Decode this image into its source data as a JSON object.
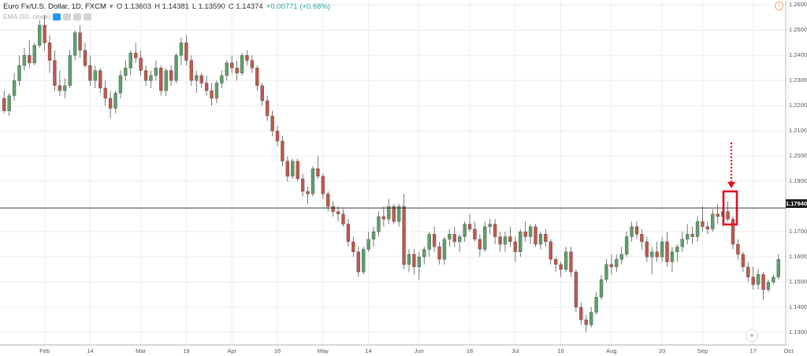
{
  "header": {
    "symbol": "Euro Fx/U.S. Dollar, 1D, FXCM",
    "open": "O 1.13603",
    "high": "H 1.14381",
    "low": "L 1.13590",
    "close": "C 1.14374",
    "change": "+0.00771 (+0.68%)",
    "dropdown_icon": "chevron-down-icon"
  },
  "indicator": {
    "label": "EMA (50, close)"
  },
  "price_axis": {
    "labels": [
      "1.26000",
      "1.25000",
      "1.24000",
      "1.23000",
      "1.22000",
      "1.21000",
      "1.20000",
      "1.19000",
      "1.17000",
      "1.16000",
      "1.15000",
      "1.14000",
      "1.13000"
    ],
    "current_price": "1.17940"
  },
  "time_axis": {
    "labels": [
      "Feb",
      "14",
      "Mar",
      "19",
      "Apr",
      "16",
      "May",
      "14",
      "Jun",
      "18",
      "Jul",
      "16",
      "Aug",
      "20",
      "Sep",
      "17",
      "Oct"
    ]
  },
  "colors": {
    "up": "#5b9f6a",
    "down": "#c0564a",
    "annotation": "#e0141e",
    "grid": "#ececec"
  },
  "icons": {
    "clock": "clock-icon",
    "scroll": "double-chevron-right-icon",
    "arrow": "dotted-arrow-down-icon"
  },
  "chart_data": {
    "type": "candlestick",
    "ylim": [
      1.125,
      1.262
    ],
    "horizontal_line": 1.1794,
    "candles": [
      [
        1.223,
        1.226,
        1.217,
        1.218
      ],
      [
        1.218,
        1.225,
        1.216,
        1.224
      ],
      [
        1.224,
        1.233,
        1.222,
        1.23
      ],
      [
        1.23,
        1.24,
        1.228,
        1.236
      ],
      [
        1.236,
        1.243,
        1.234,
        1.24
      ],
      [
        1.24,
        1.246,
        1.235,
        1.237
      ],
      [
        1.237,
        1.245,
        1.236,
        1.244
      ],
      [
        1.244,
        1.254,
        1.243,
        1.252
      ],
      [
        1.252,
        1.256,
        1.242,
        1.245
      ],
      [
        1.245,
        1.248,
        1.233,
        1.238
      ],
      [
        1.238,
        1.242,
        1.226,
        1.228
      ],
      [
        1.228,
        1.234,
        1.224,
        1.226
      ],
      [
        1.226,
        1.231,
        1.223,
        1.228
      ],
      [
        1.228,
        1.242,
        1.227,
        1.24
      ],
      [
        1.24,
        1.25,
        1.238,
        1.249
      ],
      [
        1.249,
        1.252,
        1.239,
        1.242
      ],
      [
        1.242,
        1.245,
        1.235,
        1.236
      ],
      [
        1.236,
        1.24,
        1.228,
        1.23
      ],
      [
        1.23,
        1.236,
        1.227,
        1.234
      ],
      [
        1.234,
        1.235,
        1.225,
        1.227
      ],
      [
        1.227,
        1.23,
        1.22,
        1.223
      ],
      [
        1.223,
        1.226,
        1.215,
        1.219
      ],
      [
        1.219,
        1.226,
        1.217,
        1.225
      ],
      [
        1.225,
        1.234,
        1.223,
        1.232
      ],
      [
        1.232,
        1.238,
        1.23,
        1.235
      ],
      [
        1.235,
        1.242,
        1.232,
        1.241
      ],
      [
        1.241,
        1.245,
        1.237,
        1.239
      ],
      [
        1.239,
        1.242,
        1.232,
        1.234
      ],
      [
        1.234,
        1.236,
        1.228,
        1.23
      ],
      [
        1.23,
        1.234,
        1.227,
        1.232
      ],
      [
        1.232,
        1.238,
        1.23,
        1.235
      ],
      [
        1.235,
        1.236,
        1.224,
        1.226
      ],
      [
        1.226,
        1.235,
        1.224,
        1.234
      ],
      [
        1.234,
        1.236,
        1.228,
        1.23
      ],
      [
        1.23,
        1.241,
        1.229,
        1.24
      ],
      [
        1.24,
        1.247,
        1.236,
        1.245
      ],
      [
        1.245,
        1.248,
        1.236,
        1.238
      ],
      [
        1.238,
        1.24,
        1.228,
        1.23
      ],
      [
        1.23,
        1.234,
        1.225,
        1.232
      ],
      [
        1.232,
        1.233,
        1.227,
        1.229
      ],
      [
        1.229,
        1.232,
        1.224,
        1.226
      ],
      [
        1.226,
        1.229,
        1.22,
        1.223
      ],
      [
        1.223,
        1.23,
        1.221,
        1.229
      ],
      [
        1.229,
        1.234,
        1.227,
        1.232
      ],
      [
        1.232,
        1.238,
        1.23,
        1.237
      ],
      [
        1.237,
        1.24,
        1.233,
        1.235
      ],
      [
        1.235,
        1.238,
        1.23,
        1.233
      ],
      [
        1.233,
        1.241,
        1.232,
        1.24
      ],
      [
        1.24,
        1.242,
        1.236,
        1.238
      ],
      [
        1.238,
        1.24,
        1.233,
        1.235
      ],
      [
        1.235,
        1.236,
        1.226,
        1.228
      ],
      [
        1.228,
        1.229,
        1.22,
        1.222
      ],
      [
        1.222,
        1.224,
        1.214,
        1.216
      ],
      [
        1.216,
        1.218,
        1.208,
        1.21
      ],
      [
        1.21,
        1.212,
        1.204,
        1.206
      ],
      [
        1.206,
        1.208,
        1.196,
        1.198
      ],
      [
        1.198,
        1.2,
        1.19,
        1.192
      ],
      [
        1.192,
        1.199,
        1.191,
        1.198
      ],
      [
        1.198,
        1.199,
        1.19,
        1.191
      ],
      [
        1.191,
        1.193,
        1.184,
        1.186
      ],
      [
        1.186,
        1.188,
        1.181,
        1.185
      ],
      [
        1.185,
        1.196,
        1.184,
        1.195
      ],
      [
        1.195,
        1.2,
        1.191,
        1.192
      ],
      [
        1.192,
        1.193,
        1.183,
        1.185
      ],
      [
        1.185,
        1.186,
        1.178,
        1.18
      ],
      [
        1.18,
        1.182,
        1.176,
        1.178
      ],
      [
        1.178,
        1.18,
        1.174,
        1.177
      ],
      [
        1.177,
        1.179,
        1.172,
        1.173
      ],
      [
        1.173,
        1.175,
        1.164,
        1.166
      ],
      [
        1.166,
        1.168,
        1.16,
        1.162
      ],
      [
        1.162,
        1.164,
        1.152,
        1.154
      ],
      [
        1.154,
        1.164,
        1.153,
        1.163
      ],
      [
        1.163,
        1.17,
        1.162,
        1.167
      ],
      [
        1.167,
        1.172,
        1.164,
        1.17
      ],
      [
        1.17,
        1.178,
        1.168,
        1.176
      ],
      [
        1.176,
        1.18,
        1.172,
        1.175
      ],
      [
        1.175,
        1.183,
        1.173,
        1.18
      ],
      [
        1.18,
        1.181,
        1.173,
        1.174
      ],
      [
        1.174,
        1.181,
        1.172,
        1.18
      ],
      [
        1.18,
        1.185,
        1.155,
        1.157
      ],
      [
        1.157,
        1.163,
        1.154,
        1.161
      ],
      [
        1.161,
        1.163,
        1.153,
        1.156
      ],
      [
        1.156,
        1.162,
        1.151,
        1.16
      ],
      [
        1.16,
        1.164,
        1.157,
        1.163
      ],
      [
        1.163,
        1.17,
        1.16,
        1.169
      ],
      [
        1.169,
        1.172,
        1.162,
        1.164
      ],
      [
        1.164,
        1.166,
        1.157,
        1.159
      ],
      [
        1.159,
        1.168,
        1.157,
        1.167
      ],
      [
        1.167,
        1.171,
        1.164,
        1.169
      ],
      [
        1.169,
        1.172,
        1.164,
        1.166
      ],
      [
        1.166,
        1.169,
        1.162,
        1.168
      ],
      [
        1.168,
        1.174,
        1.166,
        1.173
      ],
      [
        1.173,
        1.177,
        1.17,
        1.171
      ],
      [
        1.171,
        1.174,
        1.166,
        1.167
      ],
      [
        1.167,
        1.169,
        1.16,
        1.163
      ],
      [
        1.163,
        1.174,
        1.162,
        1.172
      ],
      [
        1.172,
        1.175,
        1.169,
        1.173
      ],
      [
        1.173,
        1.175,
        1.165,
        1.168
      ],
      [
        1.168,
        1.17,
        1.162,
        1.165
      ],
      [
        1.165,
        1.17,
        1.162,
        1.168
      ],
      [
        1.168,
        1.172,
        1.164,
        1.166
      ],
      [
        1.166,
        1.168,
        1.158,
        1.162
      ],
      [
        1.162,
        1.171,
        1.16,
        1.17
      ],
      [
        1.17,
        1.174,
        1.166,
        1.168
      ],
      [
        1.168,
        1.173,
        1.165,
        1.172
      ],
      [
        1.172,
        1.173,
        1.164,
        1.165
      ],
      [
        1.165,
        1.17,
        1.163,
        1.169
      ],
      [
        1.169,
        1.171,
        1.164,
        1.166
      ],
      [
        1.166,
        1.167,
        1.157,
        1.159
      ],
      [
        1.159,
        1.16,
        1.154,
        1.157
      ],
      [
        1.157,
        1.158,
        1.152,
        1.155
      ],
      [
        1.155,
        1.164,
        1.154,
        1.162
      ],
      [
        1.162,
        1.164,
        1.152,
        1.154
      ],
      [
        1.154,
        1.155,
        1.138,
        1.14
      ],
      [
        1.14,
        1.142,
        1.133,
        1.135
      ],
      [
        1.135,
        1.137,
        1.13,
        1.133
      ],
      [
        1.133,
        1.14,
        1.132,
        1.138
      ],
      [
        1.138,
        1.146,
        1.137,
        1.144
      ],
      [
        1.144,
        1.153,
        1.143,
        1.151
      ],
      [
        1.151,
        1.159,
        1.15,
        1.157
      ],
      [
        1.157,
        1.161,
        1.153,
        1.156
      ],
      [
        1.156,
        1.161,
        1.154,
        1.159
      ],
      [
        1.159,
        1.164,
        1.157,
        1.161
      ],
      [
        1.161,
        1.17,
        1.16,
        1.168
      ],
      [
        1.168,
        1.174,
        1.166,
        1.172
      ],
      [
        1.172,
        1.174,
        1.167,
        1.169
      ],
      [
        1.169,
        1.171,
        1.163,
        1.166
      ],
      [
        1.166,
        1.168,
        1.158,
        1.16
      ],
      [
        1.16,
        1.164,
        1.153,
        1.162
      ],
      [
        1.162,
        1.166,
        1.158,
        1.16
      ],
      [
        1.16,
        1.168,
        1.158,
        1.166
      ],
      [
        1.166,
        1.17,
        1.156,
        1.158
      ],
      [
        1.158,
        1.164,
        1.154,
        1.162
      ],
      [
        1.162,
        1.165,
        1.158,
        1.164
      ],
      [
        1.164,
        1.17,
        1.162,
        1.167
      ],
      [
        1.167,
        1.173,
        1.165,
        1.169
      ],
      [
        1.169,
        1.172,
        1.165,
        1.168
      ],
      [
        1.168,
        1.176,
        1.166,
        1.174
      ],
      [
        1.174,
        1.18,
        1.17,
        1.172
      ],
      [
        1.172,
        1.174,
        1.169,
        1.171
      ],
      [
        1.171,
        1.179,
        1.17,
        1.177
      ],
      [
        1.177,
        1.181,
        1.173,
        1.176
      ],
      [
        1.176,
        1.179,
        1.172,
        1.178
      ],
      [
        1.178,
        1.182,
        1.174,
        1.175
      ],
      [
        1.175,
        1.176,
        1.163,
        1.165
      ],
      [
        1.165,
        1.167,
        1.159,
        1.161
      ],
      [
        1.161,
        1.162,
        1.154,
        1.156
      ],
      [
        1.156,
        1.158,
        1.15,
        1.152
      ],
      [
        1.152,
        1.156,
        1.147,
        1.149
      ],
      [
        1.149,
        1.155,
        1.147,
        1.153
      ],
      [
        1.153,
        1.154,
        1.143,
        1.147
      ],
      [
        1.147,
        1.151,
        1.146,
        1.15
      ],
      [
        1.15,
        1.153,
        1.149,
        1.152
      ],
      [
        1.152,
        1.161,
        1.151,
        1.159
      ]
    ]
  }
}
